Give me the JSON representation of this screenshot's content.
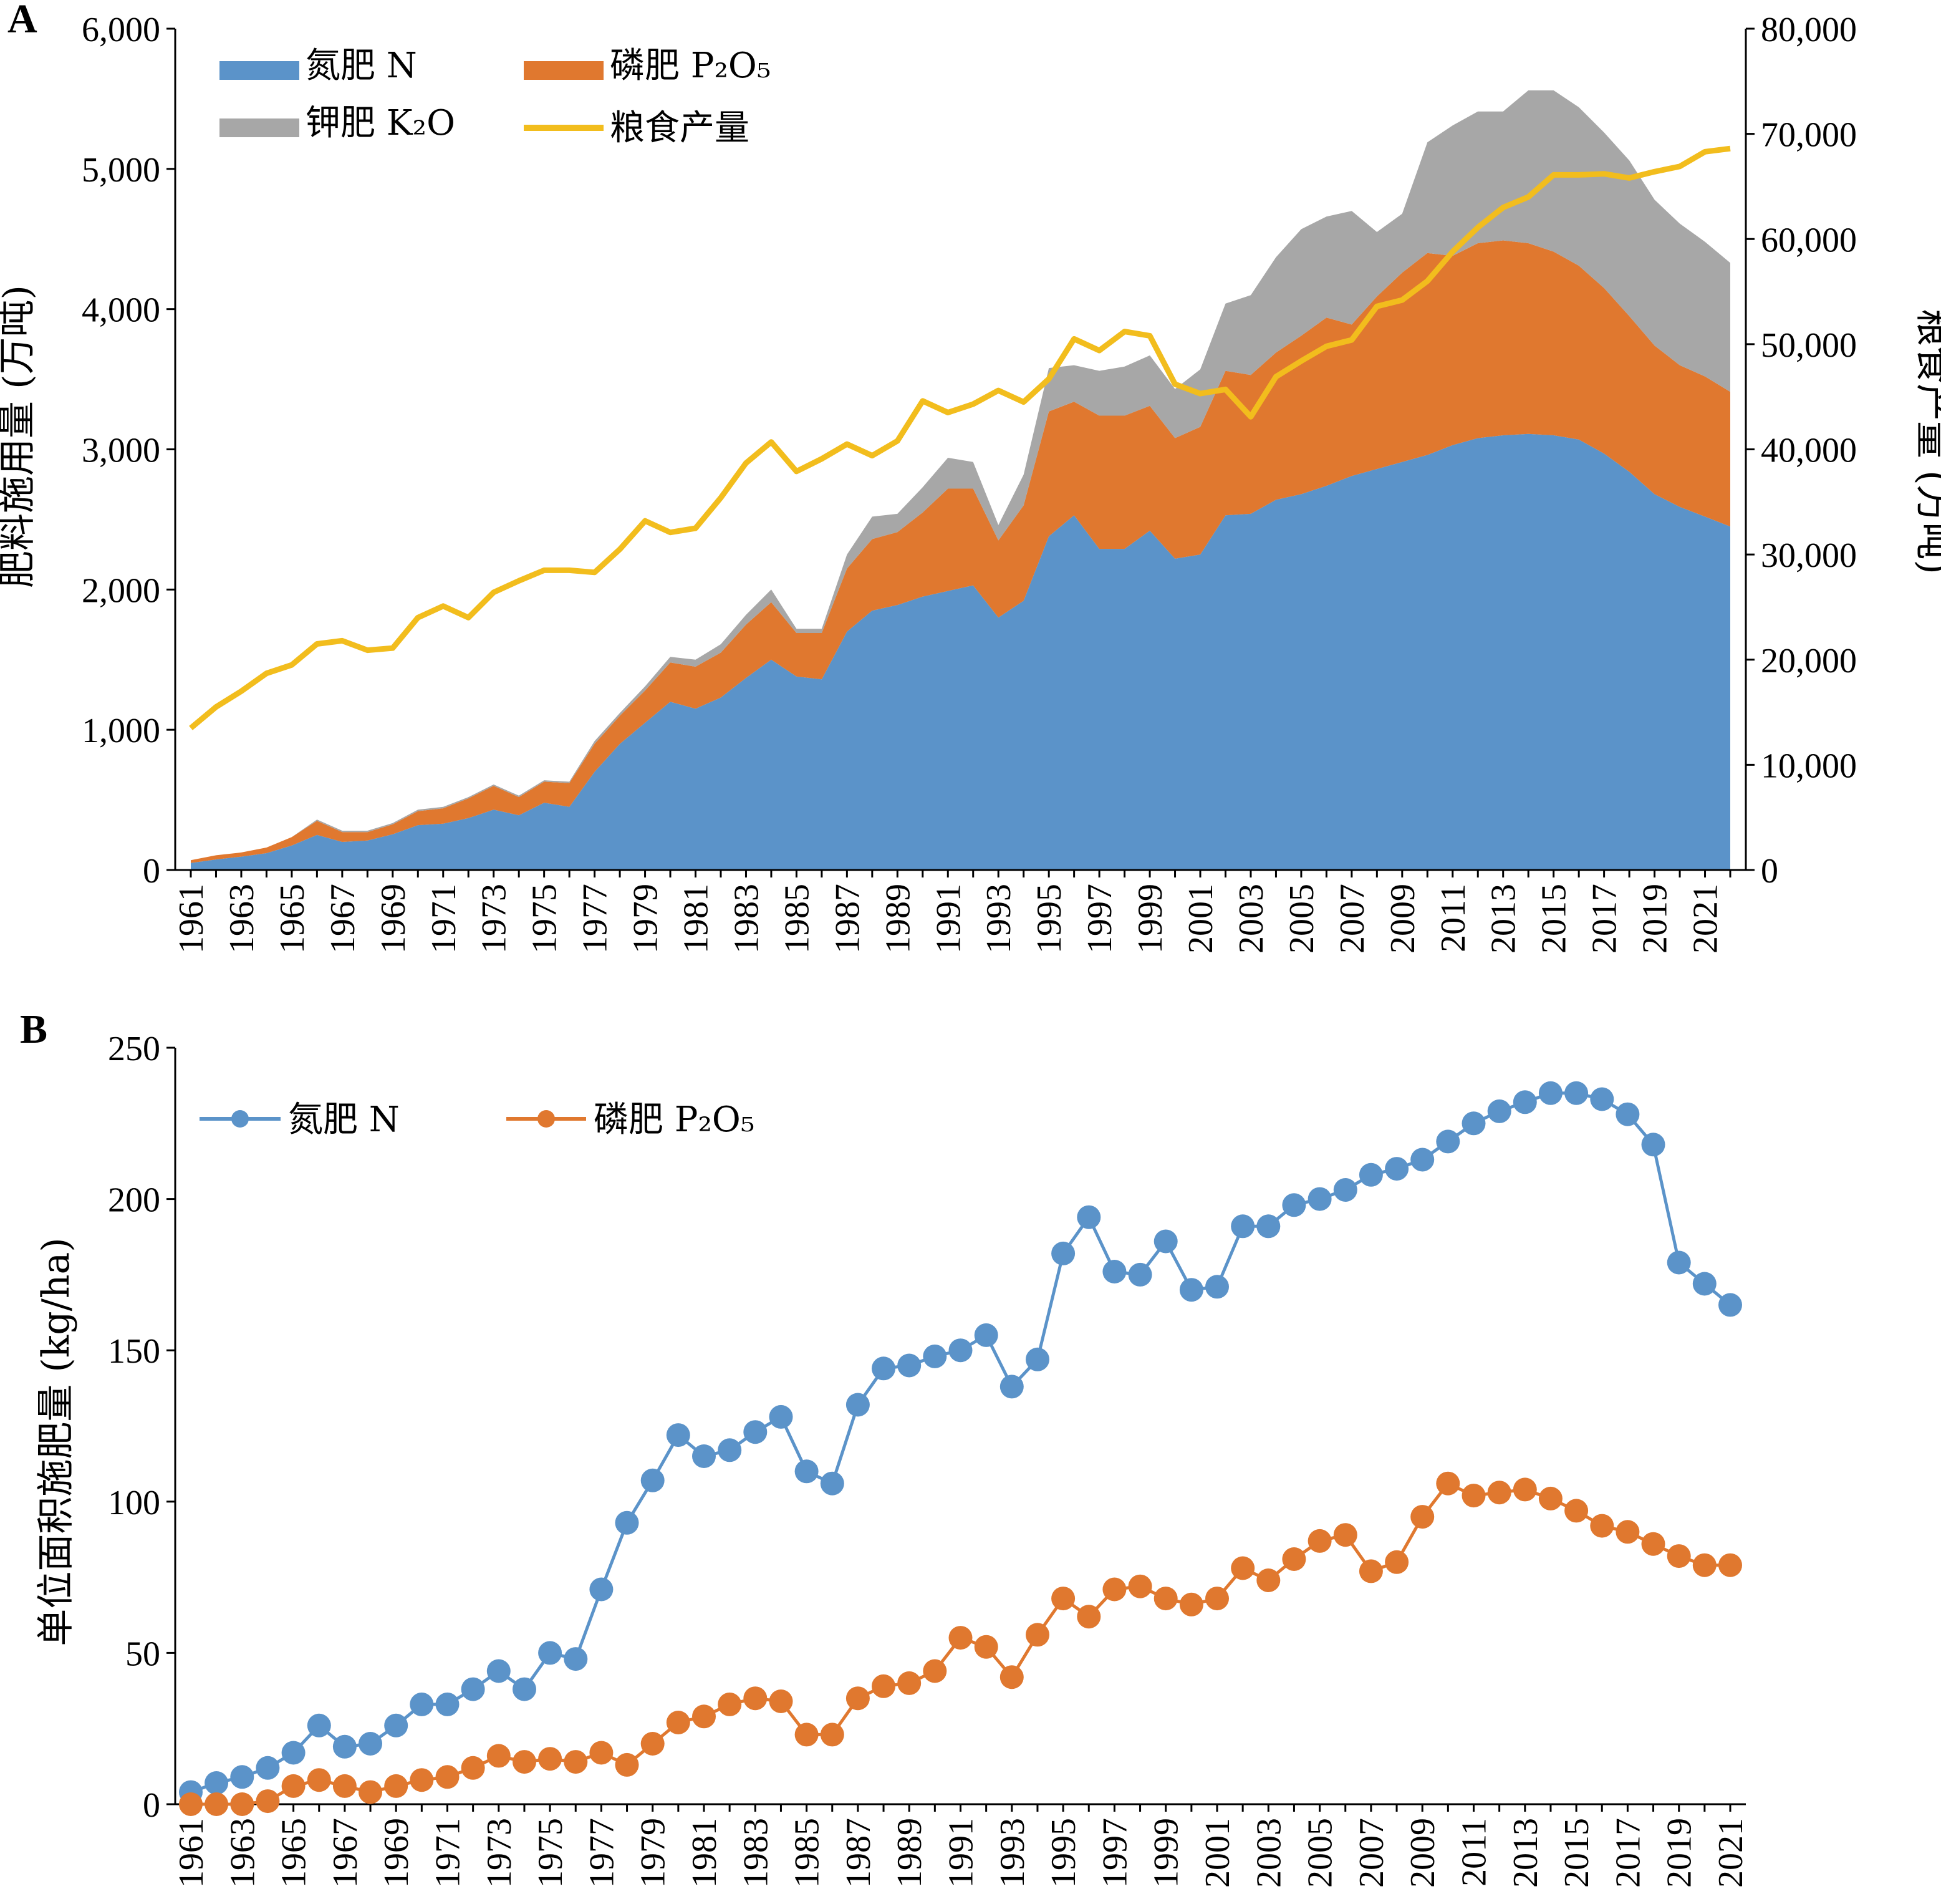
{
  "chart_data": [
    {
      "type": "area",
      "panel_label": "A",
      "ylabel": "肥料施用量 (万吨)",
      "y2label": "粮食产量 (万吨)",
      "ylim": [
        0,
        6000
      ],
      "y2lim": [
        0,
        80000
      ],
      "yticks": [
        "0",
        "1,000",
        "2,000",
        "3,000",
        "4,000",
        "5,000",
        "6,000"
      ],
      "y2ticks": [
        "0",
        "10,000",
        "20,000",
        "30,000",
        "40,000",
        "50,000",
        "60,000",
        "70,000",
        "80,000"
      ],
      "x_tick_labels": [
        "1961",
        "1963",
        "1965",
        "1967",
        "1969",
        "1971",
        "1973",
        "1975",
        "1977",
        "1979",
        "1981",
        "1983",
        "1985",
        "1987",
        "1989",
        "1991",
        "1993",
        "1995",
        "1997",
        "1999",
        "2001",
        "2003",
        "2005",
        "2007",
        "2009",
        "2011",
        "2013",
        "2015",
        "2017",
        "2019",
        "2021"
      ],
      "x": [
        1961,
        1962,
        1963,
        1964,
        1965,
        1966,
        1967,
        1968,
        1969,
        1970,
        1971,
        1972,
        1973,
        1974,
        1975,
        1976,
        1977,
        1978,
        1979,
        1980,
        1981,
        1982,
        1983,
        1984,
        1985,
        1986,
        1987,
        1988,
        1989,
        1990,
        1991,
        1992,
        1993,
        1994,
        1995,
        1996,
        1997,
        1998,
        1999,
        2000,
        2001,
        2002,
        2003,
        2004,
        2005,
        2006,
        2007,
        2008,
        2009,
        2010,
        2011,
        2012,
        2013,
        2014,
        2015,
        2016,
        2017,
        2018,
        2019,
        2020,
        2021,
        2022
      ],
      "stacked": true,
      "legend_position": "top-left",
      "series": [
        {
          "name": "氮肥 N",
          "color": "#5b93c9",
          "values": [
            50,
            75,
            95,
            120,
            175,
            250,
            200,
            210,
            255,
            320,
            330,
            370,
            430,
            390,
            480,
            450,
            700,
            900,
            1050,
            1200,
            1150,
            1230,
            1370,
            1500,
            1380,
            1360,
            1700,
            1850,
            1890,
            1950,
            1990,
            2030,
            1800,
            1920,
            2380,
            2530,
            2290,
            2290,
            2420,
            2220,
            2250,
            2530,
            2540,
            2640,
            2680,
            2740,
            2810,
            2860,
            2910,
            2960,
            3030,
            3080,
            3100,
            3110,
            3100,
            3070,
            2970,
            2840,
            2680,
            2590,
            2520,
            2450
          ]
        },
        {
          "name": "磷肥 P₂O₅",
          "color": "#e0782f",
          "values": [
            20,
            30,
            30,
            40,
            60,
            100,
            70,
            60,
            70,
            100,
            110,
            140,
            170,
            130,
            150,
            170,
            200,
            200,
            230,
            280,
            300,
            320,
            380,
            410,
            310,
            330,
            450,
            510,
            520,
            600,
            730,
            690,
            550,
            680,
            890,
            810,
            950,
            950,
            890,
            860,
            910,
            1030,
            990,
            1050,
            1130,
            1200,
            1080,
            1230,
            1350,
            1440,
            1350,
            1390,
            1390,
            1360,
            1310,
            1240,
            1180,
            1110,
            1060,
            1010,
            1000,
            960
          ]
        },
        {
          "name": "钾肥 K₂O",
          "color": "#a7a7a7",
          "values": [
            0,
            0,
            0,
            0,
            0,
            10,
            10,
            10,
            10,
            10,
            10,
            10,
            10,
            10,
            10,
            10,
            20,
            20,
            30,
            40,
            50,
            60,
            70,
            90,
            30,
            30,
            100,
            160,
            130,
            180,
            220,
            190,
            110,
            220,
            310,
            260,
            320,
            350,
            360,
            350,
            410,
            480,
            570,
            680,
            760,
            720,
            810,
            460,
            420,
            790,
            930,
            940,
            920,
            1090,
            1150,
            1130,
            1110,
            1110,
            1040,
            1010,
            960,
            920
          ]
        },
        {
          "name": "粮食产量",
          "color": "#f2bd1d",
          "axis": "right",
          "values": [
            13500,
            15500,
            17000,
            18700,
            19500,
            21500,
            21800,
            20900,
            21100,
            24000,
            25100,
            24000,
            26400,
            27500,
            28500,
            28500,
            28300,
            30500,
            33200,
            32100,
            32500,
            35400,
            38700,
            40700,
            37900,
            39100,
            40500,
            39400,
            40800,
            44600,
            43500,
            44300,
            45600,
            44500,
            46700,
            50500,
            49400,
            51200,
            50800,
            46200,
            45300,
            45700,
            43100,
            46900,
            48400,
            49800,
            50400,
            53600,
            54200,
            56000,
            58800,
            61100,
            63000,
            64000,
            66100,
            66100,
            66200,
            65800,
            66400,
            66900,
            68300,
            68600
          ]
        }
      ]
    },
    {
      "type": "line",
      "panel_label": "B",
      "ylabel": "单位面积施肥量 (kg/ha)",
      "ylim": [
        0,
        250
      ],
      "yticks": [
        "0",
        "50",
        "100",
        "150",
        "200",
        "250"
      ],
      "x_tick_labels": [
        "1961",
        "1963",
        "1965",
        "1967",
        "1969",
        "1971",
        "1973",
        "1975",
        "1977",
        "1979",
        "1981",
        "1983",
        "1985",
        "1987",
        "1989",
        "1991",
        "1993",
        "1995",
        "1997",
        "1999",
        "2001",
        "2003",
        "2005",
        "2007",
        "2009",
        "2011",
        "2013",
        "2015",
        "2017",
        "2019",
        "2021"
      ],
      "x": [
        1961,
        1962,
        1963,
        1964,
        1965,
        1966,
        1967,
        1968,
        1969,
        1970,
        1971,
        1972,
        1973,
        1974,
        1975,
        1976,
        1977,
        1978,
        1979,
        1980,
        1981,
        1982,
        1983,
        1984,
        1985,
        1986,
        1987,
        1988,
        1989,
        1990,
        1991,
        1992,
        1993,
        1994,
        1995,
        1996,
        1997,
        1998,
        1999,
        2000,
        2001,
        2002,
        2003,
        2004,
        2005,
        2006,
        2007,
        2008,
        2009,
        2010,
        2011,
        2012,
        2013,
        2014,
        2015,
        2016,
        2017,
        2018,
        2019,
        2020,
        2021
      ],
      "legend_position": "top-left",
      "series": [
        {
          "name": "氮肥 N",
          "color": "#5b93c9",
          "values": [
            4,
            7,
            9,
            12,
            17,
            26,
            19,
            20,
            26,
            33,
            33,
            38,
            44,
            38,
            50,
            48,
            71,
            93,
            107,
            122,
            115,
            117,
            123,
            128,
            110,
            106,
            132,
            144,
            145,
            148,
            150,
            155,
            138,
            147,
            182,
            194,
            176,
            175,
            186,
            170,
            171,
            191,
            191,
            198,
            200,
            203,
            208,
            210,
            213,
            219,
            225,
            229,
            232,
            235,
            235,
            233,
            228,
            218,
            179,
            172,
            165
          ]
        },
        {
          "name": "磷肥 P₂O₅",
          "color": "#e0782f",
          "values": [
            0,
            0,
            0,
            1,
            6,
            8,
            6,
            4,
            6,
            8,
            9,
            12,
            16,
            14,
            15,
            14,
            17,
            13,
            20,
            27,
            29,
            33,
            35,
            34,
            23,
            23,
            35,
            39,
            40,
            44,
            55,
            52,
            42,
            56,
            68,
            62,
            71,
            72,
            68,
            66,
            68,
            78,
            74,
            81,
            87,
            89,
            77,
            80,
            95,
            106,
            102,
            103,
            104,
            101,
            97,
            92,
            90,
            86,
            82,
            79,
            79
          ]
        }
      ]
    }
  ]
}
